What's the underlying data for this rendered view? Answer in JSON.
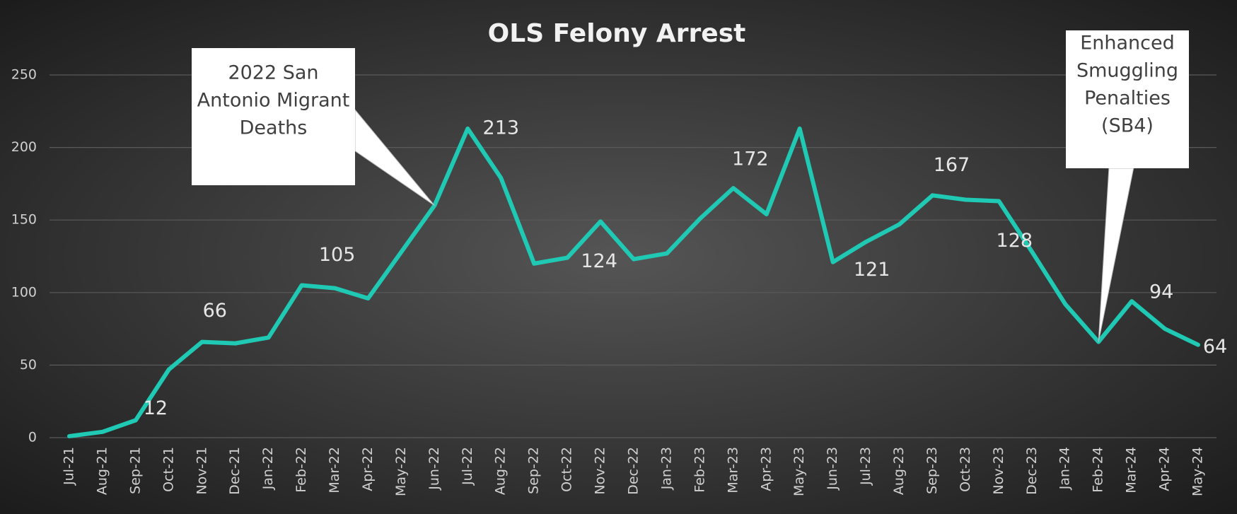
{
  "chart_data": {
    "type": "line",
    "title": "OLS Felony Arrest",
    "categories": [
      "Jul-21",
      "Aug-21",
      "Sep-21",
      "Oct-21",
      "Nov-21",
      "Dec-21",
      "Jan-22",
      "Feb-22",
      "Mar-22",
      "Apr-22",
      "May-22",
      "Jun-22",
      "Jul-22",
      "Aug-22",
      "Sep-22",
      "Oct-22",
      "Nov-22",
      "Dec-22",
      "Jan-23",
      "Feb-23",
      "Mar-23",
      "Apr-23",
      "May-23",
      "Jun-23",
      "Jul-23",
      "Aug-23",
      "Sep-23",
      "Oct-23",
      "Nov-23",
      "Dec-23",
      "Jan-24",
      "Feb-24",
      "Mar-24",
      "Apr-24",
      "May-24"
    ],
    "values": [
      1,
      4,
      12,
      47,
      66,
      65,
      69,
      105,
      103,
      96,
      128,
      160,
      213,
      179,
      120,
      124,
      149,
      123,
      127,
      151,
      172,
      154,
      213,
      121,
      135,
      147,
      167,
      164,
      163,
      128,
      92,
      66,
      94,
      75,
      64
    ],
    "value_labels": [
      null,
      null,
      "12",
      null,
      "66",
      null,
      null,
      "105",
      null,
      null,
      null,
      null,
      "213",
      null,
      null,
      "124",
      null,
      null,
      null,
      null,
      "172",
      null,
      null,
      "121",
      null,
      null,
      "167",
      null,
      null,
      "128",
      null,
      null,
      "94",
      null,
      "64"
    ],
    "color": "#1fc9b3",
    "ylim": [
      0,
      250
    ],
    "yticks": [
      0,
      50,
      100,
      150,
      200,
      250
    ],
    "grid": true,
    "annotations": [
      {
        "lines": [
          "2022 San",
          "Antonio Migrant",
          "Deaths"
        ],
        "at": "Jun-22"
      },
      {
        "lines": [
          "Enhanced",
          "Smuggling",
          "Penalties",
          "(SB4)"
        ],
        "at": "Feb-24"
      }
    ]
  }
}
